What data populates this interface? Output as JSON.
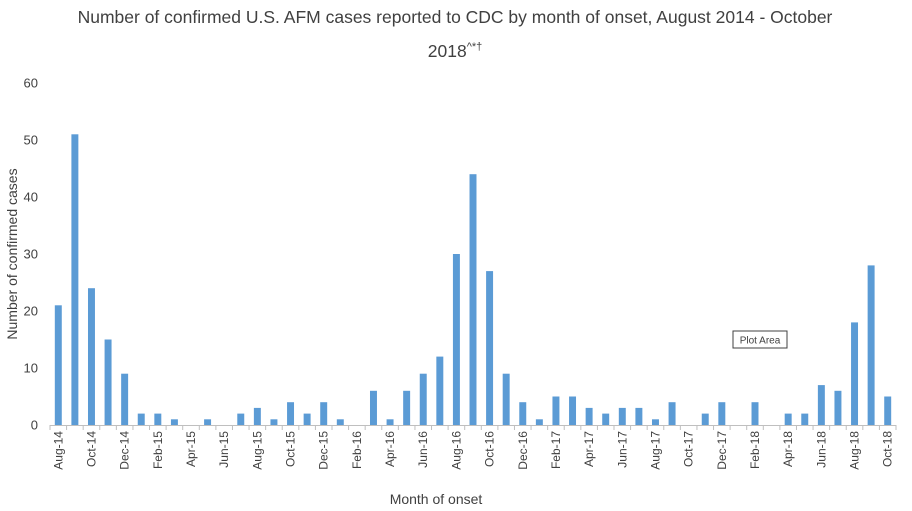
{
  "chart_data": {
    "type": "bar",
    "title_line1": "Number of confirmed U.S. AFM cases reported to CDC by month of onset, August 2014 - October",
    "title_line2": "2018",
    "title_superscript": "^*†",
    "xlabel": "Month of onset",
    "ylabel": "Number of confirmed cases",
    "ylim": [
      0,
      60
    ],
    "yticks": [
      0,
      10,
      20,
      30,
      40,
      50,
      60
    ],
    "grid": false,
    "bar_color": "#5b9bd5",
    "annotation": "Plot Area",
    "categories": [
      "Aug-14",
      "Sep-14",
      "Oct-14",
      "Nov-14",
      "Dec-14",
      "Jan-15",
      "Feb-15",
      "Mar-15",
      "Apr-15",
      "May-15",
      "Jun-15",
      "Jul-15",
      "Aug-15",
      "Sep-15",
      "Oct-15",
      "Nov-15",
      "Dec-15",
      "Jan-16",
      "Feb-16",
      "Mar-16",
      "Apr-16",
      "May-16",
      "Jun-16",
      "Jul-16",
      "Aug-16",
      "Sep-16",
      "Oct-16",
      "Nov-16",
      "Dec-16",
      "Jan-17",
      "Feb-17",
      "Mar-17",
      "Apr-17",
      "May-17",
      "Jun-17",
      "Jul-17",
      "Aug-17",
      "Sep-17",
      "Oct-17",
      "Nov-17",
      "Dec-17",
      "Jan-18",
      "Feb-18",
      "Mar-18",
      "Apr-18",
      "May-18",
      "Jun-18",
      "Jul-18",
      "Aug-18",
      "Sep-18",
      "Oct-18"
    ],
    "tick_labels": [
      "Aug-14",
      "Oct-14",
      "Dec-14",
      "Feb-15",
      "Apr-15",
      "Jun-15",
      "Aug-15",
      "Oct-15",
      "Dec-15",
      "Feb-16",
      "Apr-16",
      "Jun-16",
      "Aug-16",
      "Oct-16",
      "Dec-16",
      "Feb-17",
      "Apr-17",
      "Jun-17",
      "Aug-17",
      "Oct-17",
      "Dec-17",
      "Feb-18",
      "Apr-18",
      "Jun-18",
      "Aug-18",
      "Oct-18"
    ],
    "values": [
      21,
      51,
      24,
      15,
      9,
      2,
      2,
      1,
      0,
      1,
      0,
      2,
      3,
      1,
      4,
      2,
      4,
      1,
      0,
      6,
      1,
      6,
      9,
      12,
      30,
      44,
      27,
      9,
      4,
      1,
      5,
      5,
      3,
      2,
      3,
      3,
      1,
      4,
      0,
      2,
      4,
      0,
      4,
      0,
      2,
      2,
      7,
      6,
      18,
      28,
      5
    ]
  }
}
